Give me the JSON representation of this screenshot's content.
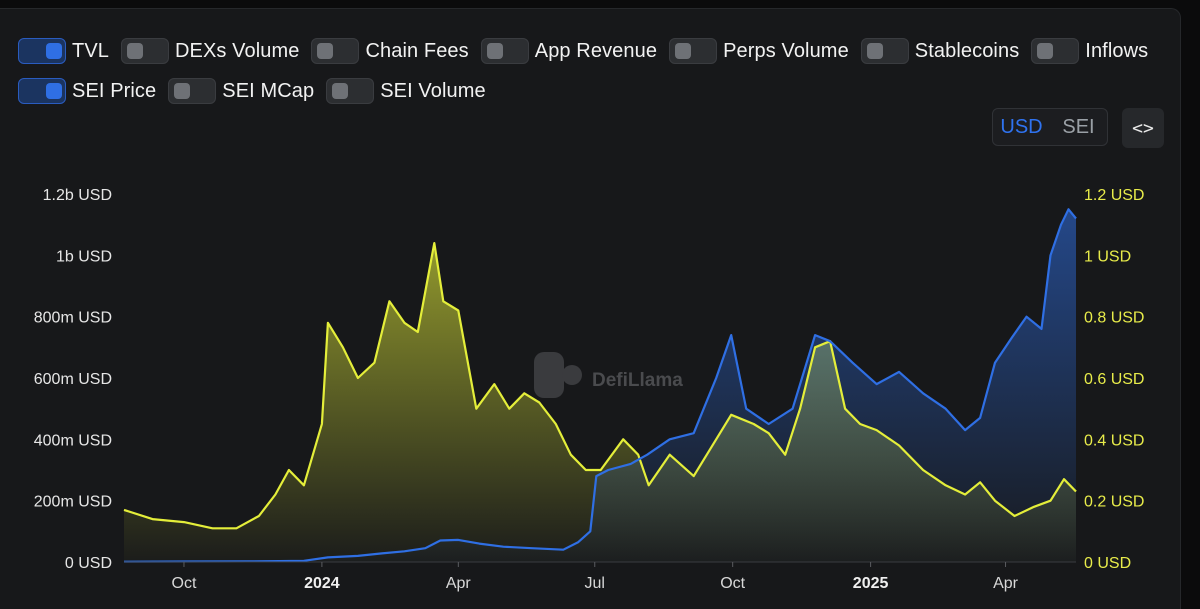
{
  "toggles": [
    {
      "label": "TVL",
      "on": true
    },
    {
      "label": "DEXs Volume",
      "on": false
    },
    {
      "label": "Chain Fees",
      "on": false
    },
    {
      "label": "App Revenue",
      "on": false
    },
    {
      "label": "Perps Volume",
      "on": false
    },
    {
      "label": "Stablecoins",
      "on": false
    },
    {
      "label": "Inflows",
      "on": false
    },
    {
      "label": "SEI Price",
      "on": true
    },
    {
      "label": "SEI MCap",
      "on": false
    },
    {
      "label": "SEI Volume",
      "on": false
    }
  ],
  "unit_switch": {
    "options": [
      "USD",
      "SEI"
    ],
    "active": "USD"
  },
  "embed_button": {
    "label": "<>",
    "icon": "code-icon"
  },
  "watermark": "DefiLlama",
  "colors": {
    "tvl": "#2f6fe4",
    "price": "#e4ee3a",
    "panel": "#17181a"
  },
  "chart_data": {
    "type": "area",
    "x_ticks": [
      {
        "label": "Oct",
        "date": "2023-10-01",
        "bold": false
      },
      {
        "label": "2024",
        "date": "2024-01-01",
        "bold": true
      },
      {
        "label": "Apr",
        "date": "2024-04-01",
        "bold": false
      },
      {
        "label": "Jul",
        "date": "2024-07-01",
        "bold": false
      },
      {
        "label": "Oct",
        "date": "2024-10-01",
        "bold": false
      },
      {
        "label": "2025",
        "date": "2025-01-01",
        "bold": true
      },
      {
        "label": "Apr",
        "date": "2025-04-01",
        "bold": false
      }
    ],
    "x_range": [
      "2023-08-22",
      "2025-05-18"
    ],
    "left_axis": {
      "ticks": [
        "0 USD",
        "200m USD",
        "400m USD",
        "600m USD",
        "800m USD",
        "1b USD",
        "1.2b USD"
      ],
      "ylim": [
        0,
        1200000000
      ]
    },
    "right_axis": {
      "ticks": [
        "0 USD",
        "0.2 USD",
        "0.4 USD",
        "0.6 USD",
        "0.8 USD",
        "1 USD",
        "1.2 USD"
      ],
      "ylim": [
        0,
        1.2
      ]
    },
    "series": [
      {
        "name": "TVL",
        "axis": "left",
        "points": [
          [
            "2023-08-22",
            1000000
          ],
          [
            "2023-10-01",
            1500000
          ],
          [
            "2023-11-15",
            2000000
          ],
          [
            "2023-12-20",
            4000000
          ],
          [
            "2024-01-05",
            15000000
          ],
          [
            "2024-01-25",
            20000000
          ],
          [
            "2024-02-10",
            28000000
          ],
          [
            "2024-02-25",
            35000000
          ],
          [
            "2024-03-10",
            45000000
          ],
          [
            "2024-03-20",
            70000000
          ],
          [
            "2024-04-01",
            72000000
          ],
          [
            "2024-04-15",
            60000000
          ],
          [
            "2024-05-01",
            50000000
          ],
          [
            "2024-05-20",
            45000000
          ],
          [
            "2024-06-10",
            40000000
          ],
          [
            "2024-06-20",
            65000000
          ],
          [
            "2024-06-28",
            100000000
          ],
          [
            "2024-07-02",
            280000000
          ],
          [
            "2024-07-10",
            300000000
          ],
          [
            "2024-07-25",
            320000000
          ],
          [
            "2024-08-05",
            350000000
          ],
          [
            "2024-08-20",
            400000000
          ],
          [
            "2024-09-05",
            420000000
          ],
          [
            "2024-09-20",
            600000000
          ],
          [
            "2024-09-30",
            740000000
          ],
          [
            "2024-10-10",
            500000000
          ],
          [
            "2024-10-25",
            450000000
          ],
          [
            "2024-11-10",
            500000000
          ],
          [
            "2024-11-25",
            740000000
          ],
          [
            "2024-12-05",
            720000000
          ],
          [
            "2024-12-20",
            650000000
          ],
          [
            "2025-01-05",
            580000000
          ],
          [
            "2025-01-20",
            620000000
          ],
          [
            "2025-02-05",
            550000000
          ],
          [
            "2025-02-20",
            500000000
          ],
          [
            "2025-03-05",
            430000000
          ],
          [
            "2025-03-15",
            470000000
          ],
          [
            "2025-03-25",
            650000000
          ],
          [
            "2025-04-05",
            730000000
          ],
          [
            "2025-04-15",
            800000000
          ],
          [
            "2025-04-25",
            760000000
          ],
          [
            "2025-05-01",
            1000000000
          ],
          [
            "2025-05-08",
            1100000000
          ],
          [
            "2025-05-13",
            1150000000
          ],
          [
            "2025-05-18",
            1120000000
          ]
        ]
      },
      {
        "name": "SEI Price",
        "axis": "right",
        "points": [
          [
            "2023-08-22",
            0.17
          ],
          [
            "2023-09-10",
            0.14
          ],
          [
            "2023-10-01",
            0.13
          ],
          [
            "2023-10-20",
            0.11
          ],
          [
            "2023-11-05",
            0.11
          ],
          [
            "2023-11-20",
            0.15
          ],
          [
            "2023-12-01",
            0.22
          ],
          [
            "2023-12-10",
            0.3
          ],
          [
            "2023-12-20",
            0.25
          ],
          [
            "2024-01-01",
            0.45
          ],
          [
            "2024-01-05",
            0.78
          ],
          [
            "2024-01-15",
            0.7
          ],
          [
            "2024-01-25",
            0.6
          ],
          [
            "2024-02-05",
            0.65
          ],
          [
            "2024-02-15",
            0.85
          ],
          [
            "2024-02-25",
            0.78
          ],
          [
            "2024-03-05",
            0.75
          ],
          [
            "2024-03-16",
            1.04
          ],
          [
            "2024-03-22",
            0.85
          ],
          [
            "2024-04-01",
            0.82
          ],
          [
            "2024-04-13",
            0.5
          ],
          [
            "2024-04-25",
            0.58
          ],
          [
            "2024-05-05",
            0.5
          ],
          [
            "2024-05-15",
            0.55
          ],
          [
            "2024-05-25",
            0.52
          ],
          [
            "2024-06-05",
            0.45
          ],
          [
            "2024-06-15",
            0.35
          ],
          [
            "2024-06-25",
            0.3
          ],
          [
            "2024-07-05",
            0.3
          ],
          [
            "2024-07-20",
            0.4
          ],
          [
            "2024-07-30",
            0.35
          ],
          [
            "2024-08-06",
            0.25
          ],
          [
            "2024-08-20",
            0.35
          ],
          [
            "2024-09-05",
            0.28
          ],
          [
            "2024-09-20",
            0.4
          ],
          [
            "2024-09-30",
            0.48
          ],
          [
            "2024-10-15",
            0.45
          ],
          [
            "2024-10-25",
            0.42
          ],
          [
            "2024-11-05",
            0.35
          ],
          [
            "2024-11-15",
            0.5
          ],
          [
            "2024-11-25",
            0.7
          ],
          [
            "2024-12-05",
            0.72
          ],
          [
            "2024-12-15",
            0.5
          ],
          [
            "2024-12-25",
            0.45
          ],
          [
            "2025-01-05",
            0.43
          ],
          [
            "2025-01-20",
            0.38
          ],
          [
            "2025-02-05",
            0.3
          ],
          [
            "2025-02-20",
            0.25
          ],
          [
            "2025-03-05",
            0.22
          ],
          [
            "2025-03-15",
            0.26
          ],
          [
            "2025-03-25",
            0.2
          ],
          [
            "2025-04-07",
            0.15
          ],
          [
            "2025-04-20",
            0.18
          ],
          [
            "2025-05-01",
            0.2
          ],
          [
            "2025-05-10",
            0.27
          ],
          [
            "2025-05-18",
            0.23
          ]
        ]
      }
    ]
  }
}
